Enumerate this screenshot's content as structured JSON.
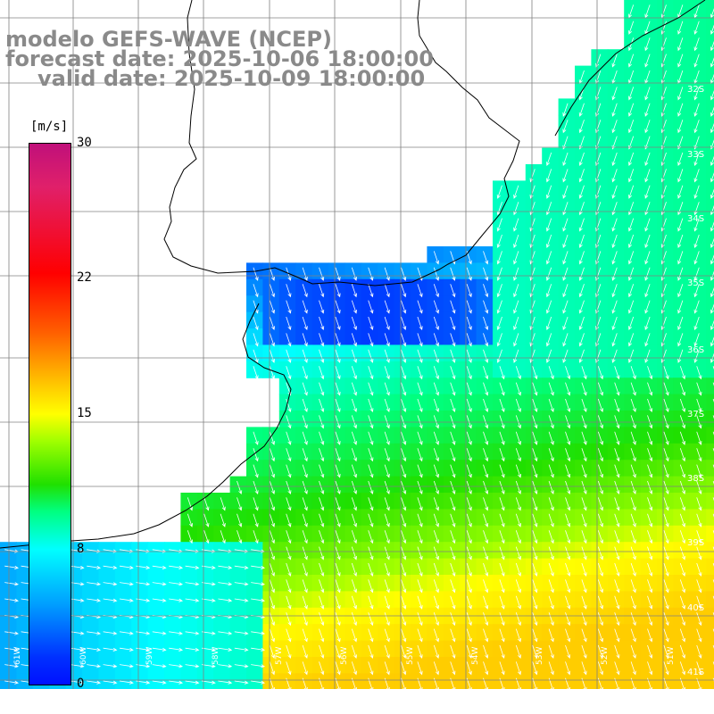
{
  "titles": {
    "line1": "modelo GEFS-WAVE (NCEP)",
    "line2": "forecast date: 2025-10-06 18:00:00",
    "line3": "valid date: 2025-10-09 18:00:00"
  },
  "colorbar": {
    "unit": "[m/s]",
    "ticks": [
      "30",
      "22",
      "15",
      "8",
      "0"
    ],
    "tick_values": [
      30,
      22,
      15,
      8,
      0
    ],
    "range": [
      0,
      30
    ]
  },
  "lat_labels": [
    "32S",
    "33S",
    "34S",
    "35S",
    "36S",
    "37S",
    "38S",
    "39S",
    "40S",
    "41S"
  ],
  "lon_labels": [
    "61W",
    "60W",
    "59W",
    "58W",
    "57W",
    "56W",
    "55W",
    "54W",
    "53W",
    "52W",
    "51W"
  ],
  "colors": {
    "land": "#ffffff",
    "coast": "#000000",
    "grid": "#808080",
    "arrows": "#ffffff"
  }
}
